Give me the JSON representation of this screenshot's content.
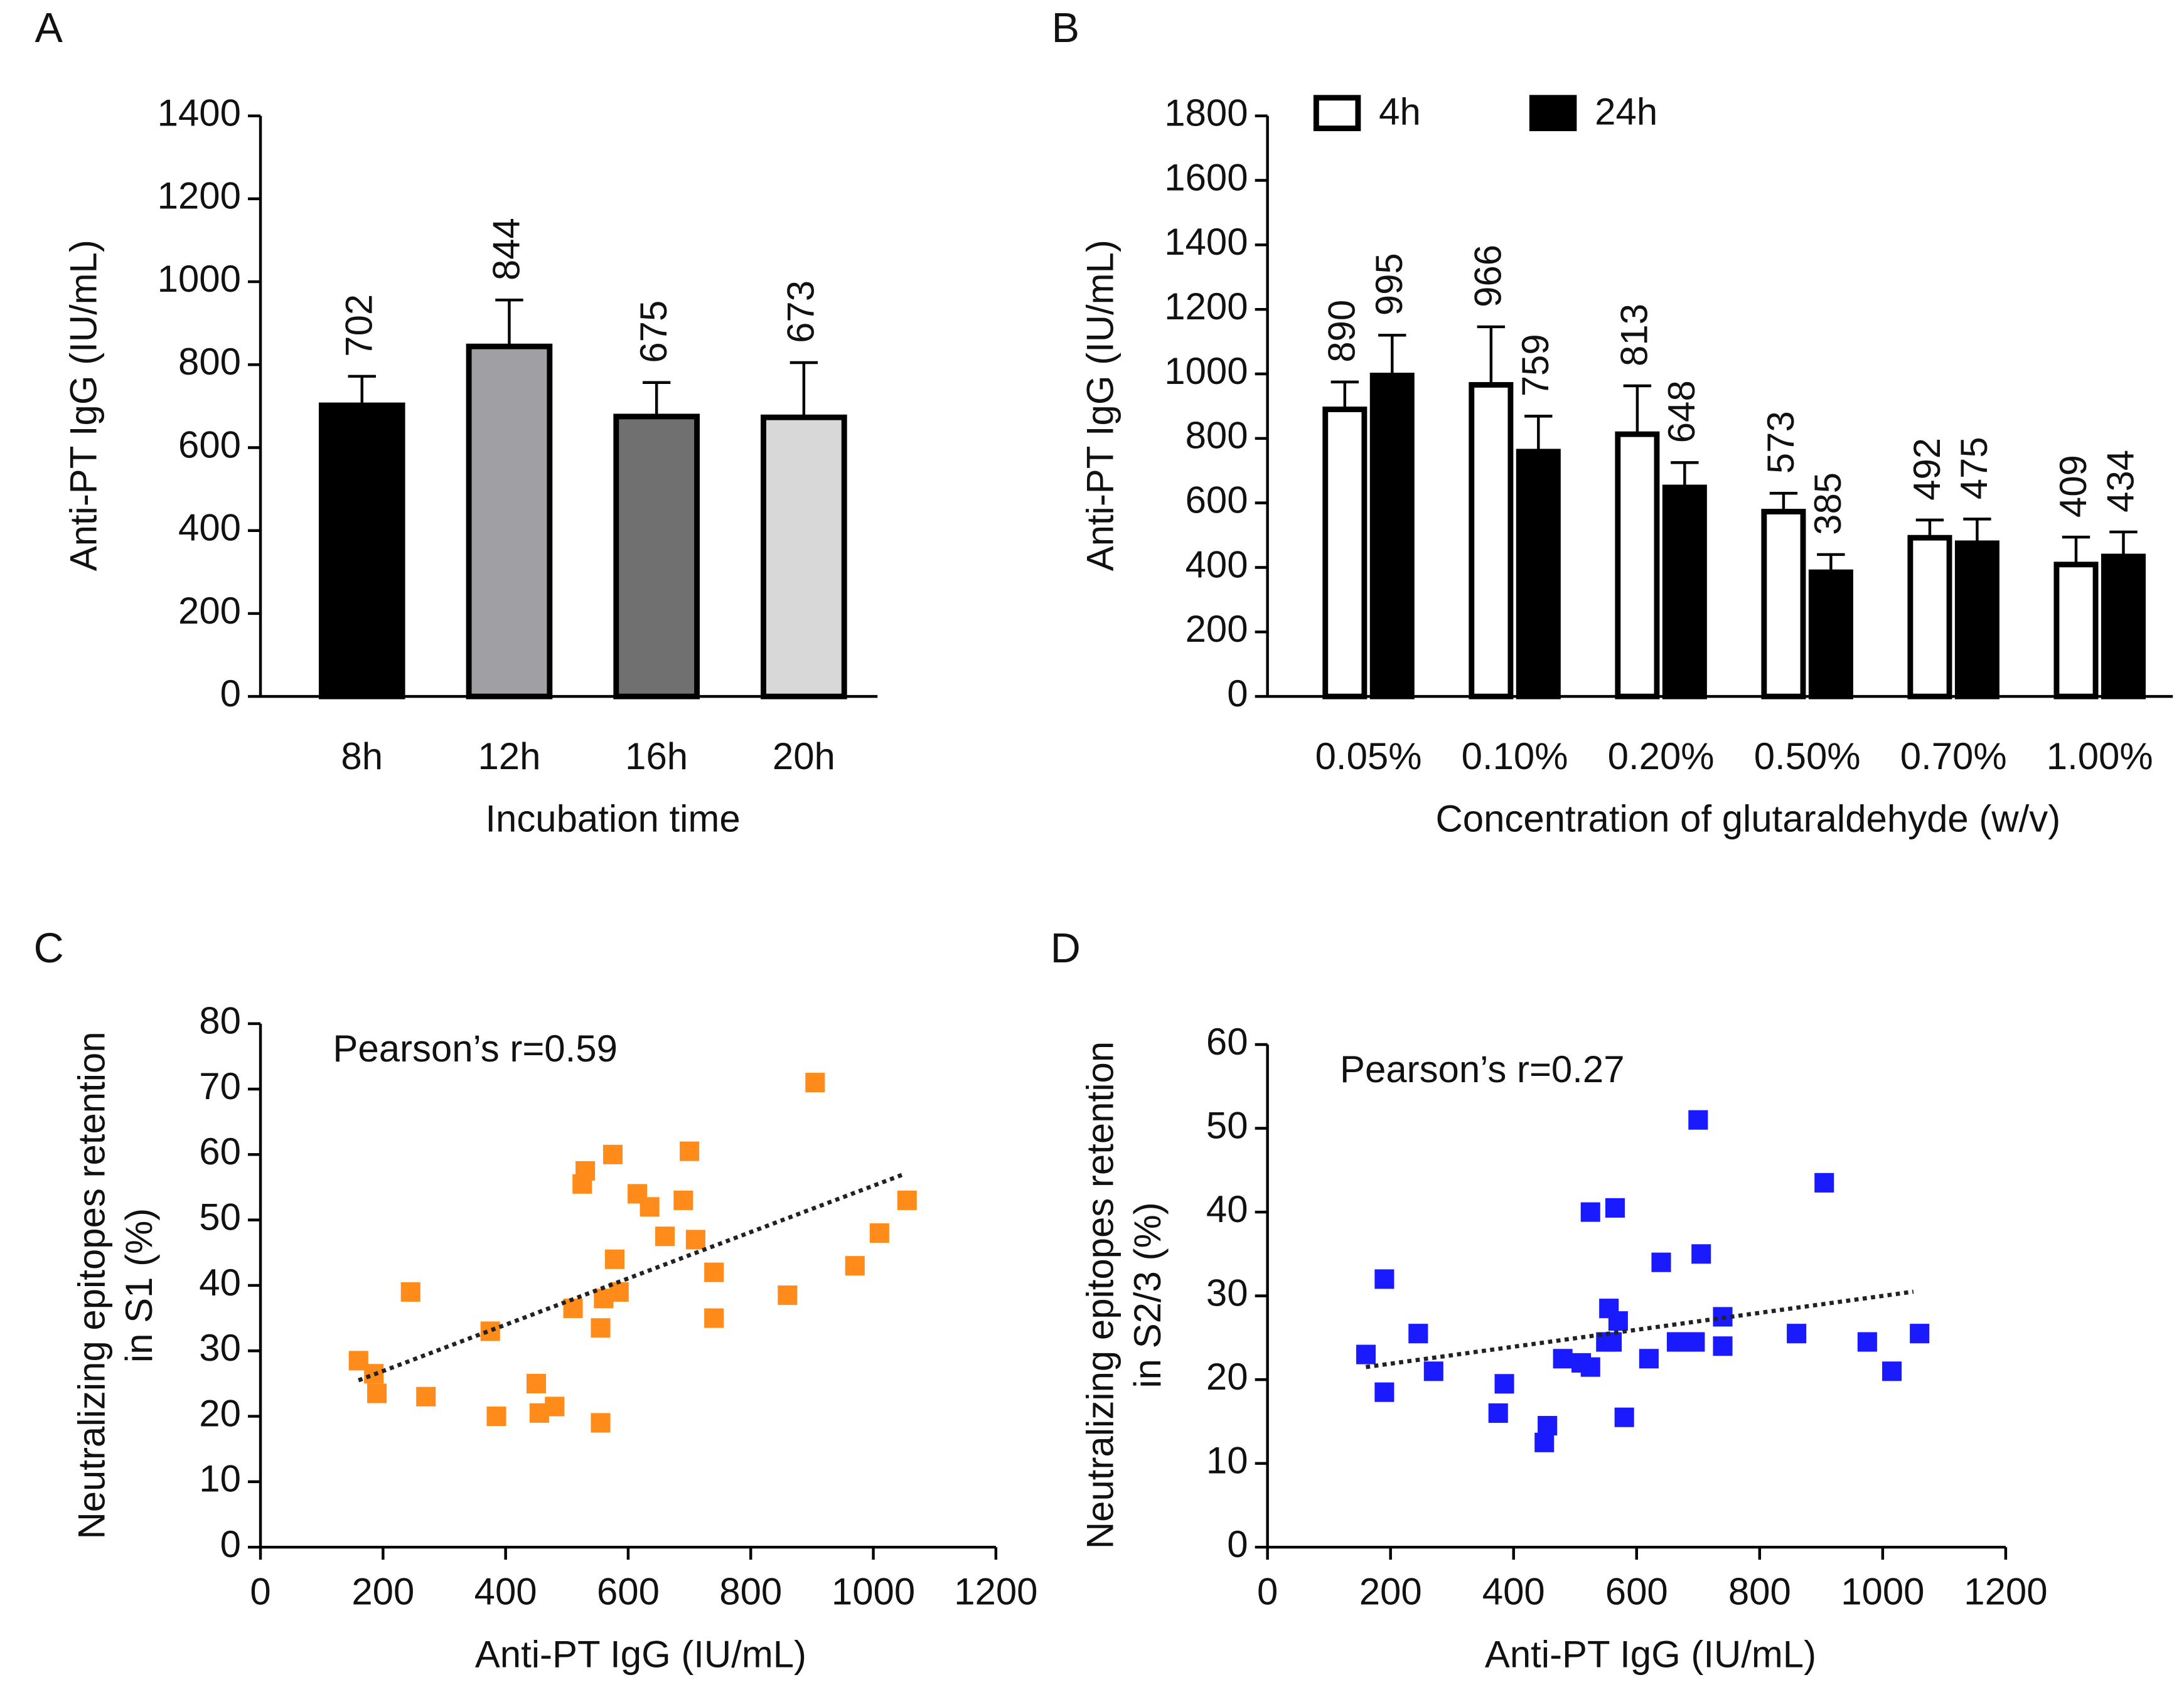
{
  "chart_data": [
    {
      "type": "bar",
      "panel_label": "A",
      "ylabel": "Anti-PT IgG (IU/mL)",
      "xlabel": "Incubation time",
      "categories": [
        "8h",
        "12h",
        "16h",
        "20h"
      ],
      "values": [
        702,
        844,
        675,
        673
      ],
      "errors": [
        70,
        112,
        82,
        132
      ],
      "colors": [
        "#000000",
        "#a0a0a4",
        "#707070",
        "#d8d8d8"
      ],
      "ylim": [
        0,
        1400
      ],
      "yticks": [
        0,
        200,
        400,
        600,
        800,
        1000,
        1200,
        1400
      ]
    },
    {
      "type": "bar",
      "panel_label": "B",
      "ylabel": "Anti-PT IgG (IU/mL)",
      "xlabel": "Concentration of glutaraldehyde (w/v)",
      "categories": [
        "0.05%",
        "0.10%",
        "0.20%",
        "0.50%",
        "0.70%",
        "1.00%"
      ],
      "series": [
        {
          "name": "4h",
          "color": "#ffffff",
          "values": [
            890,
            966,
            813,
            573,
            492,
            409
          ],
          "errors": [
            85,
            180,
            150,
            57,
            55,
            85
          ]
        },
        {
          "name": "24h",
          "color": "#000000",
          "values": [
            995,
            759,
            648,
            385,
            475,
            434
          ],
          "errors": [
            125,
            110,
            77,
            55,
            75,
            76
          ]
        }
      ],
      "ylim": [
        0,
        1800
      ],
      "yticks": [
        0,
        200,
        400,
        600,
        800,
        1000,
        1200,
        1400,
        1600,
        1800
      ]
    },
    {
      "type": "scatter",
      "panel_label": "C",
      "ylabel": [
        "Neutralizing epitopes retention",
        "in S1 (%)"
      ],
      "xlabel": "Anti-PT IgG (IU/mL)",
      "annotation": "Pearson’s r=0.59",
      "color": "#ff8c1a",
      "x": [
        160,
        185,
        190,
        245,
        270,
        375,
        385,
        450,
        455,
        480,
        510,
        525,
        530,
        555,
        560,
        555,
        575,
        578,
        585,
        615,
        635,
        660,
        690,
        700,
        710,
        740,
        740,
        860,
        905,
        970,
        1010,
        1055
      ],
      "y": [
        28.5,
        26.5,
        23.5,
        39,
        23,
        33,
        20,
        25,
        20.5,
        21.5,
        36.5,
        55.5,
        57.5,
        33.5,
        38,
        19,
        60,
        44,
        39,
        54,
        52,
        47.5,
        53,
        60.5,
        47,
        35,
        42,
        38.5,
        71,
        43,
        48,
        53
      ],
      "trendline": {
        "x": [
          160,
          1050
        ],
        "y": [
          25.5,
          57
        ]
      },
      "xlim": [
        0,
        1200
      ],
      "xticks": [
        0,
        200,
        400,
        600,
        800,
        1000,
        1200
      ],
      "ylim": [
        0,
        80
      ],
      "yticks": [
        0,
        10,
        20,
        30,
        40,
        50,
        60,
        70,
        80
      ]
    },
    {
      "type": "scatter",
      "panel_label": "D",
      "ylabel": [
        "Neutralizing epitopes retention",
        "in S2/3 (%)"
      ],
      "xlabel": "Anti-PT IgG (IU/mL)",
      "annotation": "Pearson’s r=0.27",
      "color": "#1a1aff",
      "x": [
        160,
        190,
        190,
        245,
        270,
        375,
        385,
        450,
        455,
        480,
        510,
        525,
        525,
        550,
        555,
        560,
        565,
        570,
        580,
        620,
        640,
        665,
        695,
        700,
        705,
        740,
        740,
        860,
        905,
        975,
        1015,
        1060
      ],
      "y": [
        23,
        18.5,
        32,
        25.5,
        21,
        16,
        19.5,
        12.5,
        14.5,
        22.5,
        22,
        21.5,
        40,
        24.5,
        28.5,
        24.5,
        40.5,
        27,
        15.5,
        22.5,
        34,
        24.5,
        24.5,
        51,
        35,
        24,
        27.5,
        25.5,
        43.5,
        24.5,
        21,
        25.5
      ],
      "trendline": {
        "x": [
          160,
          1050
        ],
        "y": [
          21.5,
          30.5
        ]
      },
      "xlim": [
        0,
        1200
      ],
      "xticks": [
        0,
        200,
        400,
        600,
        800,
        1000,
        1200
      ],
      "ylim": [
        0,
        60
      ],
      "yticks": [
        0,
        10,
        20,
        30,
        40,
        50,
        60
      ]
    }
  ]
}
